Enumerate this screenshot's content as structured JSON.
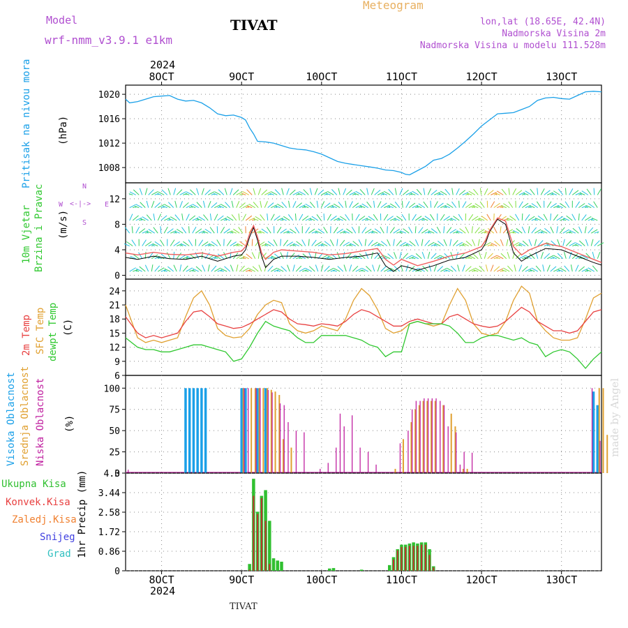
{
  "header": {
    "model_label": "Model",
    "model_name": "wrf-nmm_v3.9.1 e1km",
    "station": "TIVAT",
    "meteogram": "Meteogram",
    "lonlat": "lon,lat (18.65E, 42.4N)",
    "alt": "Nadmorska Visina 2m",
    "alt_model": "Nadmorska Visina u modelu 111.528m",
    "year_top": "2024",
    "year_bottom": "2024",
    "footer_station": "TIVAT",
    "credit": "made by Angel"
  },
  "colors": {
    "pressure": "#1aa0e8",
    "t2m": "#e84040",
    "sfc": "#e0a030",
    "dew": "#30c830",
    "high": "#1aa0e8",
    "mid": "#e0a030",
    "low": "#c020a0",
    "total": "#30c030",
    "conv": "#e84040",
    "frozen": "#f08030",
    "snow": "#4040e0",
    "grad": "#30c0c0"
  },
  "chart_data": [
    {
      "type": "line",
      "panel": "pressure",
      "ylabel_1": "Pritisak na nivou mora",
      "ylabel_2": "(hPa)",
      "x_ticks": [
        "8OCT",
        "9OCT",
        "10OCT",
        "11OCT",
        "12OCT",
        "13OCT"
      ],
      "y_ticks": [
        "1008",
        "1012",
        "1016",
        "1020"
      ],
      "ylim": [
        1005.5,
        1021.5
      ],
      "x": [
        7.55,
        7.6,
        7.7,
        7.8,
        7.9,
        8.0,
        8.1,
        8.2,
        8.3,
        8.4,
        8.5,
        8.6,
        8.7,
        8.8,
        8.9,
        9.0,
        9.05,
        9.1,
        9.15,
        9.2,
        9.3,
        9.4,
        9.5,
        9.6,
        9.7,
        9.8,
        9.9,
        10.0,
        10.1,
        10.2,
        10.3,
        10.4,
        10.5,
        10.6,
        10.7,
        10.8,
        10.9,
        11.0,
        11.05,
        11.1,
        11.2,
        11.3,
        11.4,
        11.5,
        11.6,
        11.7,
        11.8,
        11.9,
        12.0,
        12.1,
        12.2,
        12.3,
        12.4,
        12.5,
        12.6,
        12.7,
        12.8,
        12.9,
        13.0,
        13.1,
        13.2,
        13.3,
        13.4,
        13.5
      ],
      "series": [
        {
          "values": [
            1019.2,
            1018.6,
            1018.8,
            1019.2,
            1019.6,
            1019.7,
            1019.8,
            1019.2,
            1018.9,
            1019.0,
            1018.6,
            1017.8,
            1016.8,
            1016.5,
            1016.6,
            1016.2,
            1015.8,
            1014.5,
            1013.5,
            1012.3,
            1012.2,
            1012.0,
            1011.6,
            1011.2,
            1011.0,
            1010.9,
            1010.6,
            1010.2,
            1009.6,
            1009.0,
            1008.7,
            1008.5,
            1008.3,
            1008.1,
            1007.9,
            1007.6,
            1007.5,
            1007.2,
            1006.9,
            1006.8,
            1007.5,
            1008.2,
            1009.2,
            1009.5,
            1010.2,
            1011.2,
            1012.3,
            1013.5,
            1014.8,
            1015.8,
            1016.8,
            1016.9,
            1017.0,
            1017.5,
            1018.0,
            1019.0,
            1019.4,
            1019.5,
            1019.3,
            1019.2,
            1019.8,
            1020.4,
            1020.5,
            1020.4
          ]
        }
      ]
    },
    {
      "type": "line",
      "panel": "wind",
      "ylabel_1": "10m Vjetar",
      "ylabel_2": "Brzina i Pravac",
      "ylabel_3": "(m/s)",
      "compass": {
        "w": "W",
        "e": "E",
        "n": "N",
        "s": "S"
      },
      "y_ticks": [
        "0",
        "4",
        "8",
        "12"
      ],
      "ylim": [
        -0.6,
        14.5
      ],
      "x": [
        7.55,
        7.7,
        7.9,
        8.1,
        8.3,
        8.5,
        8.7,
        8.9,
        9.0,
        9.05,
        9.1,
        9.15,
        9.2,
        9.25,
        9.3,
        9.4,
        9.5,
        9.7,
        9.9,
        10.1,
        10.3,
        10.5,
        10.7,
        10.8,
        10.9,
        11.0,
        11.1,
        11.2,
        11.4,
        11.6,
        11.8,
        12.0,
        12.05,
        12.1,
        12.2,
        12.3,
        12.35,
        12.4,
        12.5,
        12.6,
        12.8,
        13.0,
        13.2,
        13.4,
        13.5
      ],
      "series": [
        {
          "values": [
            3.5,
            3.2,
            3.6,
            3.3,
            3.2,
            3.5,
            3.0,
            3.6,
            3.8,
            4.5,
            6.5,
            7.8,
            6.0,
            3.5,
            2.5,
            3.6,
            4.0,
            3.8,
            3.6,
            3.2,
            3.4,
            3.8,
            4.2,
            2.5,
            1.6,
            2.5,
            2.0,
            1.5,
            2.2,
            3.0,
            3.5,
            4.5,
            5.5,
            7.0,
            9.0,
            8.5,
            6.5,
            4.5,
            3.2,
            4.0,
            5.0,
            4.5,
            3.5,
            2.5,
            2.0
          ]
        },
        {
          "values": [
            2.8,
            2.5,
            3.0,
            2.6,
            2.5,
            3.0,
            2.2,
            3.0,
            3.2,
            4.0,
            6.0,
            7.5,
            5.5,
            3.0,
            1.2,
            2.5,
            3.0,
            3.0,
            2.8,
            2.5,
            2.8,
            3.0,
            3.5,
            1.5,
            0.6,
            1.5,
            1.2,
            0.8,
            1.5,
            2.4,
            2.8,
            4.0,
            5.0,
            6.8,
            8.8,
            8.0,
            5.8,
            3.5,
            2.2,
            3.0,
            4.2,
            4.0,
            3.0,
            2.0,
            1.6
          ]
        }
      ]
    },
    {
      "type": "line",
      "panel": "temperature",
      "ylabel_1": "2m Temp",
      "ylabel_2": "SFC Temp",
      "ylabel_3": "dewpt Temp",
      "ylabel_4": "(C)",
      "y_ticks": [
        "6",
        "9",
        "12",
        "15",
        "18",
        "21",
        "24"
      ],
      "ylim": [
        6,
        26.5
      ],
      "x": [
        7.55,
        7.7,
        7.8,
        7.9,
        8.0,
        8.1,
        8.2,
        8.3,
        8.4,
        8.5,
        8.6,
        8.7,
        8.8,
        8.9,
        9.0,
        9.1,
        9.2,
        9.3,
        9.4,
        9.5,
        9.6,
        9.7,
        9.8,
        9.9,
        10.0,
        10.1,
        10.2,
        10.3,
        10.4,
        10.5,
        10.6,
        10.7,
        10.8,
        10.9,
        11.0,
        11.1,
        11.2,
        11.3,
        11.4,
        11.5,
        11.6,
        11.7,
        11.8,
        11.9,
        12.0,
        12.1,
        12.2,
        12.3,
        12.4,
        12.5,
        12.6,
        12.7,
        12.8,
        12.9,
        13.0,
        13.1,
        13.2,
        13.3,
        13.4,
        13.5
      ],
      "series": [
        {
          "values": [
            18.5,
            15.0,
            14.0,
            14.5,
            14.0,
            14.5,
            15.0,
            17.5,
            19.5,
            19.8,
            18.5,
            17.0,
            16.5,
            16.0,
            16.2,
            17.0,
            18.0,
            19.0,
            20.0,
            19.5,
            18.0,
            17.0,
            16.8,
            16.5,
            17.0,
            16.8,
            16.5,
            17.5,
            19.0,
            20.0,
            19.5,
            18.5,
            17.5,
            16.5,
            16.5,
            17.5,
            18.0,
            17.5,
            17.0,
            17.0,
            18.5,
            19.0,
            18.0,
            17.0,
            16.5,
            16.2,
            16.5,
            17.5,
            19.0,
            20.5,
            19.5,
            17.5,
            16.5,
            15.5,
            15.5,
            15.0,
            15.5,
            17.5,
            19.5,
            20.0
          ]
        },
        {
          "values": [
            21.0,
            14.0,
            13.0,
            13.5,
            13.0,
            13.5,
            14.0,
            18.5,
            22.5,
            24.0,
            21.0,
            16.0,
            14.5,
            14.0,
            14.2,
            16.0,
            19.0,
            21.0,
            22.0,
            21.5,
            17.0,
            15.5,
            15.0,
            15.5,
            16.5,
            16.0,
            15.5,
            18.0,
            22.0,
            24.5,
            23.0,
            20.0,
            16.0,
            15.0,
            15.5,
            17.0,
            17.5,
            17.0,
            16.5,
            17.0,
            21.0,
            24.5,
            22.0,
            17.0,
            15.0,
            14.5,
            15.0,
            17.5,
            22.0,
            25.0,
            23.5,
            17.5,
            15.5,
            14.0,
            13.5,
            13.5,
            14.0,
            18.0,
            22.5,
            23.5
          ]
        },
        {
          "values": [
            14.0,
            12.0,
            11.5,
            11.5,
            11.0,
            11.0,
            11.5,
            12.0,
            12.5,
            12.5,
            12.0,
            11.5,
            11.0,
            9.0,
            9.5,
            12.0,
            15.0,
            17.5,
            16.5,
            16.0,
            15.5,
            14.0,
            13.0,
            13.0,
            14.5,
            14.5,
            14.5,
            14.5,
            14.0,
            13.5,
            12.5,
            12.0,
            10.0,
            11.0,
            11.0,
            17.0,
            17.5,
            17.0,
            17.0,
            17.0,
            16.5,
            15.0,
            13.0,
            13.0,
            14.0,
            14.5,
            14.5,
            14.0,
            13.5,
            14.0,
            13.0,
            12.5,
            10.0,
            11.0,
            11.5,
            11.0,
            9.5,
            7.5,
            9.5,
            11.0
          ]
        }
      ]
    },
    {
      "type": "bar",
      "panel": "cloud",
      "ylabel_1": "Visoka Oblacnost",
      "ylabel_2": "Srednja Oblacnost",
      "ylabel_3": "Niska Oblacnost",
      "ylabel_4": "(%)",
      "y_ticks": [
        "0",
        "25",
        "50",
        "75",
        "100"
      ],
      "ylim": [
        0,
        100
      ],
      "series": [
        {
          "bars": [
            [
              8.3,
              100
            ],
            [
              8.35,
              100
            ],
            [
              8.4,
              100
            ],
            [
              8.45,
              100
            ],
            [
              8.5,
              100
            ],
            [
              8.55,
              100
            ],
            [
              9.0,
              100
            ],
            [
              9.05,
              100
            ],
            [
              9.2,
              100
            ],
            [
              9.3,
              100
            ],
            [
              13.4,
              96
            ],
            [
              13.45,
              80
            ]
          ]
        },
        {
          "bars": [
            [
              9.0,
              100
            ],
            [
              9.1,
              100
            ],
            [
              9.15,
              100
            ],
            [
              9.2,
              100
            ],
            [
              9.25,
              100
            ],
            [
              9.3,
              100
            ],
            [
              9.35,
              98
            ],
            [
              9.4,
              96
            ],
            [
              9.45,
              92
            ],
            [
              9.5,
              40
            ],
            [
              9.6,
              30
            ],
            [
              10.9,
              5
            ],
            [
              11.0,
              40
            ],
            [
              11.1,
              60
            ],
            [
              11.15,
              75
            ],
            [
              11.2,
              80
            ],
            [
              11.25,
              85
            ],
            [
              11.3,
              85
            ],
            [
              11.35,
              85
            ],
            [
              11.4,
              85
            ],
            [
              11.5,
              80
            ],
            [
              11.6,
              70
            ],
            [
              11.65,
              55
            ],
            [
              11.75,
              5
            ],
            [
              11.8,
              5
            ],
            [
              13.45,
              100
            ],
            [
              13.5,
              100
            ],
            [
              13.55,
              45
            ]
          ]
        },
        {
          "bars": [
            [
              7.6,
              4
            ],
            [
              9.05,
              100
            ],
            [
              9.1,
              100
            ],
            [
              9.2,
              100
            ],
            [
              9.25,
              100
            ],
            [
              9.35,
              98
            ],
            [
              9.4,
              95
            ],
            [
              9.5,
              82
            ],
            [
              9.55,
              80
            ],
            [
              9.6,
              60
            ],
            [
              9.7,
              50
            ],
            [
              9.8,
              48
            ],
            [
              10.0,
              5
            ],
            [
              10.1,
              12
            ],
            [
              10.2,
              30
            ],
            [
              10.25,
              70
            ],
            [
              10.3,
              55
            ],
            [
              10.4,
              68
            ],
            [
              10.5,
              30
            ],
            [
              10.6,
              25
            ],
            [
              10.7,
              10
            ],
            [
              11.0,
              35
            ],
            [
              11.1,
              50
            ],
            [
              11.15,
              75
            ],
            [
              11.2,
              85
            ],
            [
              11.25,
              85
            ],
            [
              11.3,
              88
            ],
            [
              11.35,
              88
            ],
            [
              11.4,
              88
            ],
            [
              11.45,
              88
            ],
            [
              11.5,
              85
            ],
            [
              11.55,
              80
            ],
            [
              11.6,
              55
            ],
            [
              11.7,
              48
            ],
            [
              11.75,
              10
            ],
            [
              11.8,
              25
            ],
            [
              11.9,
              24
            ],
            [
              13.4,
              100
            ],
            [
              13.5,
              38
            ]
          ]
        }
      ]
    },
    {
      "type": "bar",
      "panel": "precip",
      "legend": [
        "Ukupna Kisa",
        "Konvek.Kisa",
        "Zaledj.Kisa",
        "Snijeg",
        "Grad"
      ],
      "ylabel": "1hr Precip (mm)",
      "y_ticks": [
        "0",
        "0.86",
        "1.72",
        "2.58",
        "3.44",
        "4.3"
      ],
      "ylim": [
        0,
        4.3
      ],
      "series": [
        {
          "name": "Ukupna Kisa",
          "bars": [
            [
              9.1,
              0.3
            ],
            [
              9.15,
              4.05
            ],
            [
              9.2,
              2.6
            ],
            [
              9.25,
              3.3
            ],
            [
              9.3,
              3.55
            ],
            [
              9.35,
              2.2
            ],
            [
              9.4,
              0.55
            ],
            [
              9.45,
              0.45
            ],
            [
              9.5,
              0.4
            ],
            [
              10.1,
              0.1
            ],
            [
              10.15,
              0.12
            ],
            [
              10.5,
              0.05
            ],
            [
              10.85,
              0.25
            ],
            [
              10.9,
              0.6
            ],
            [
              10.95,
              0.95
            ],
            [
              11.0,
              1.15
            ],
            [
              11.05,
              1.15
            ],
            [
              11.1,
              1.2
            ],
            [
              11.15,
              1.25
            ],
            [
              11.2,
              1.2
            ],
            [
              11.25,
              1.25
            ],
            [
              11.3,
              1.25
            ],
            [
              11.35,
              0.95
            ],
            [
              11.4,
              0.2
            ]
          ]
        },
        {
          "name": "Konvek.Kisa",
          "bars": [
            [
              9.1,
              0.05
            ],
            [
              9.15,
              3.3
            ],
            [
              9.2,
              2.5
            ],
            [
              9.25,
              3.2
            ],
            [
              9.3,
              2.2
            ],
            [
              9.35,
              0.3
            ],
            [
              10.9,
              0.5
            ],
            [
              10.95,
              0.9
            ],
            [
              11.0,
              1.05
            ],
            [
              11.05,
              1.05
            ],
            [
              11.1,
              1.1
            ],
            [
              11.15,
              1.1
            ],
            [
              11.2,
              1.1
            ],
            [
              11.25,
              1.15
            ],
            [
              11.3,
              1.15
            ],
            [
              11.35,
              0.7
            ],
            [
              11.4,
              0.15
            ]
          ]
        }
      ]
    }
  ]
}
